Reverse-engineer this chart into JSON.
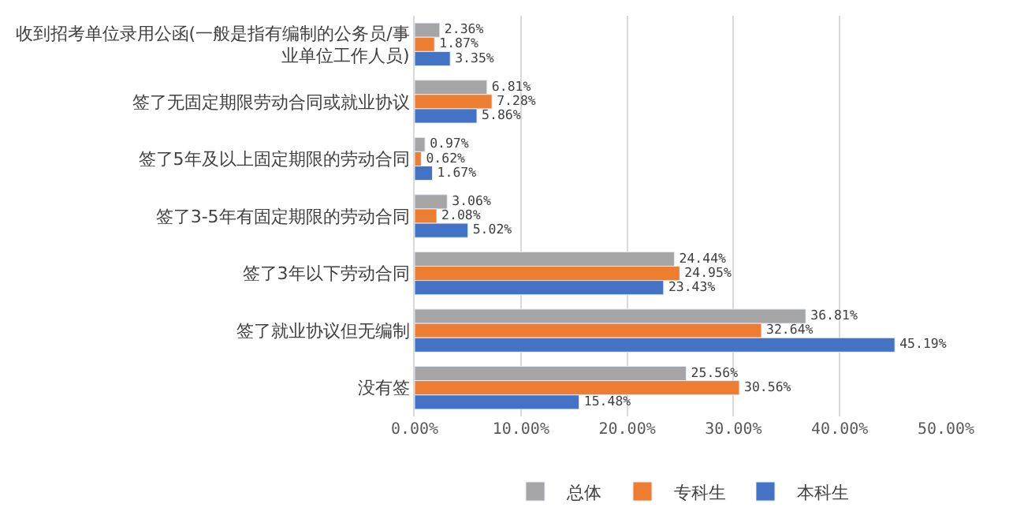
{
  "chart_data": {
    "type": "bar",
    "orientation": "horizontal",
    "categories": [
      "收到招考单位录用公函(一般是指有编制的公务员/事业单位工作人员)",
      "签了无固定期限劳动合同或就业协议",
      "签了5年及以上固定期限的劳动合同",
      "签了3-5年有固定期限的劳动合同",
      "签了3年以下劳动合同",
      "签了就业协议但无编制",
      "没有签"
    ],
    "series": [
      {
        "name": "总体",
        "color": "#a5a5a5",
        "values": [
          2.36,
          6.81,
          0.97,
          3.06,
          24.44,
          36.81,
          25.56
        ],
        "value_labels": [
          "2.36%",
          "6.81%",
          "0.97%",
          "3.06%",
          "24.44%",
          "36.81%",
          "25.56%"
        ]
      },
      {
        "name": "专科生",
        "color": "#ed7d31",
        "values": [
          1.87,
          7.28,
          0.62,
          2.08,
          24.95,
          32.64,
          30.56
        ],
        "value_labels": [
          "1.87%",
          "7.28%",
          "0.62%",
          "2.08%",
          "24.95%",
          "32.64%",
          "30.56%"
        ]
      },
      {
        "name": "本科生",
        "color": "#4472c4",
        "values": [
          3.35,
          5.86,
          1.67,
          5.02,
          23.43,
          45.19,
          15.48
        ],
        "value_labels": [
          "3.35%",
          "5.86%",
          "1.67%",
          "5.02%",
          "23.43%",
          "45.19%",
          "15.48%"
        ]
      }
    ],
    "xlim": [
      0,
      50
    ],
    "xticks": [
      {
        "value": 0,
        "label": "0.00%"
      },
      {
        "value": 10,
        "label": "10.00%"
      },
      {
        "value": 20,
        "label": "20.00%"
      },
      {
        "value": 30,
        "label": "30.00%"
      },
      {
        "value": 40,
        "label": "40.00%"
      },
      {
        "value": 50,
        "label": "50.00%"
      }
    ],
    "grid": "x",
    "legend": "bottom"
  }
}
